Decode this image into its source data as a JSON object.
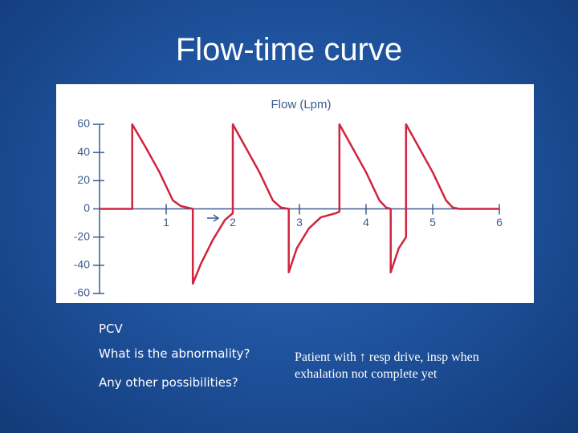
{
  "title": "Flow-time curve",
  "chart_data": {
    "type": "line",
    "title": "Flow (Lpm)",
    "color": "#d0243f",
    "x": [
      0,
      0.49,
      0.49,
      0.7,
      0.9,
      1.1,
      1.22,
      1.4,
      1.4,
      1.52,
      1.7,
      1.88,
      2.0,
      2.0,
      2.2,
      2.4,
      2.6,
      2.72,
      2.84,
      2.84,
      2.96,
      3.14,
      3.32,
      3.55,
      3.6,
      3.6,
      3.8,
      4.0,
      4.2,
      4.3,
      4.37,
      4.37,
      4.49,
      4.6,
      4.6,
      4.8,
      5.0,
      5.2,
      5.3,
      5.4,
      6.0
    ],
    "values": [
      0,
      0,
      60,
      43,
      26,
      6,
      2,
      0,
      -53,
      -39,
      -22,
      -8,
      -3,
      60,
      43,
      26,
      6,
      1,
      0,
      -45,
      -28,
      -14,
      -6,
      -3,
      -2,
      60,
      43,
      26,
      6,
      1,
      0,
      -45,
      -28,
      -20,
      60,
      43,
      26,
      6,
      1,
      0,
      0
    ],
    "xlim": [
      0,
      6
    ],
    "xticks": [
      1,
      2,
      3,
      4,
      5,
      6
    ],
    "ylim": [
      -60,
      60
    ],
    "yticks": [
      60,
      40,
      20,
      0,
      -20,
      -40,
      -60
    ]
  },
  "notes": {
    "label": "PCV",
    "questions": [
      "What is the abnormality?",
      "Any other possibilities?"
    ],
    "answer": [
      "Patient with ↑ resp drive, insp when",
      "exhalation not complete yet"
    ]
  }
}
